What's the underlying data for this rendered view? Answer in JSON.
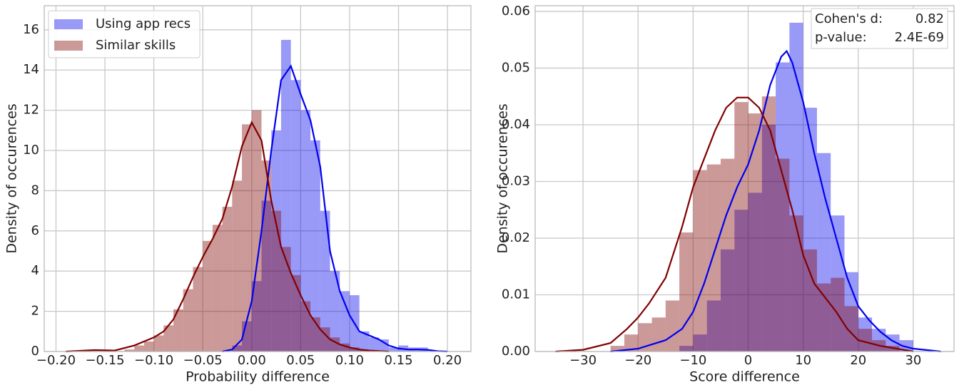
{
  "chart_data": [
    {
      "type": "histogram",
      "xlabel": "Probability difference",
      "ylabel": "Density of occurences",
      "xlim": [
        -0.212,
        0.224
      ],
      "ylim": [
        0,
        17.2
      ],
      "xticks": [
        {
          "value": -0.2,
          "label": "−0.20"
        },
        {
          "value": -0.15,
          "label": "−0.15"
        },
        {
          "value": -0.1,
          "label": "−0.10"
        },
        {
          "value": -0.05,
          "label": "−0.05"
        },
        {
          "value": 0,
          "label": "0.00"
        },
        {
          "value": 0.05,
          "label": "0.05"
        },
        {
          "value": 0.1,
          "label": "0.10"
        },
        {
          "value": 0.15,
          "label": "0.15"
        },
        {
          "value": 0.2,
          "label": "0.20"
        }
      ],
      "yticks": [
        0,
        2,
        4,
        6,
        8,
        10,
        12,
        14,
        16
      ],
      "grid": true,
      "legend": "upper left",
      "series": [
        {
          "name": "Using app recs",
          "color": "#0000ee",
          "bins": [
            -0.02,
            -0.01,
            0,
            0.01,
            0.02,
            0.03,
            0.04,
            0.05,
            0.06,
            0.07,
            0.08,
            0.09,
            0.1,
            0.11,
            0.12,
            0.13,
            0.14,
            0.15,
            0.16,
            0.17,
            0.18
          ],
          "values": [
            0.3,
            1.5,
            3.5,
            7.5,
            11,
            15.5,
            13.5,
            12,
            10.5,
            7,
            4,
            3,
            2.8,
            1,
            0.7,
            0.6,
            0.2,
            0.3,
            0.2,
            0.2
          ],
          "kde": {
            "x": [
              -0.03,
              -0.02,
              -0.01,
              0,
              0.01,
              0.02,
              0.03,
              0.04,
              0.05,
              0.06,
              0.07,
              0.08,
              0.09,
              0.1,
              0.11,
              0.12,
              0.13,
              0.14,
              0.15,
              0.16,
              0.17,
              0.18,
              0.19,
              0.2
            ],
            "values": [
              0,
              0.1,
              0.6,
              2.5,
              6,
              10,
              13.5,
              14.2,
              12.8,
              11.5,
              9.2,
              5,
              3,
              1.8,
              1,
              0.8,
              0.6,
              0.3,
              0.15,
              0.1,
              0.1,
              0.08,
              0.02,
              0
            ]
          }
        },
        {
          "name": "Similar skills",
          "color": "#800000",
          "bins": [
            -0.13,
            -0.12,
            -0.11,
            -0.1,
            -0.09,
            -0.08,
            -0.07,
            -0.06,
            -0.05,
            -0.04,
            -0.03,
            -0.02,
            -0.01,
            0,
            0.01,
            0.02,
            0.03,
            0.04,
            0.05,
            0.06,
            0.07,
            0.08,
            0.09,
            0.1,
            0.11,
            0.12
          ],
          "values": [
            0.1,
            0.3,
            0.5,
            0.8,
            1.3,
            2.1,
            3.1,
            4.2,
            5.5,
            6.3,
            7.2,
            8.5,
            11.3,
            12,
            9.5,
            7,
            5.2,
            3.8,
            2.5,
            1.7,
            1.2,
            0.7,
            0.4,
            0.2,
            0.1
          ],
          "kde": {
            "x": [
              -0.19,
              -0.17,
              -0.16,
              -0.14,
              -0.12,
              -0.1,
              -0.09,
              -0.08,
              -0.07,
              -0.06,
              -0.05,
              -0.04,
              -0.03,
              -0.02,
              -0.01,
              0,
              0.01,
              0.02,
              0.03,
              0.04,
              0.05,
              0.06,
              0.07,
              0.08,
              0.09,
              0.1,
              0.11,
              0.12,
              0.14
            ],
            "values": [
              0,
              0.05,
              0.07,
              0.05,
              0.3,
              0.7,
              1,
              1.6,
              2.6,
              3.7,
              4.7,
              5.6,
              6.6,
              8.2,
              10.2,
              11.4,
              10.5,
              7.5,
              5.2,
              3.9,
              2.8,
              1.8,
              1.1,
              0.6,
              0.35,
              0.2,
              0.1,
              0.05,
              0
            ]
          }
        }
      ]
    },
    {
      "type": "histogram",
      "xlabel": "Score difference",
      "ylabel": "Density of occurences",
      "xlim": [
        -38.7,
        37.4
      ],
      "ylim": [
        0,
        0.061
      ],
      "xticks": [
        {
          "value": -30,
          "label": "−30"
        },
        {
          "value": -20,
          "label": "−20"
        },
        {
          "value": -10,
          "label": "−10"
        },
        0,
        10,
        20,
        30
      ],
      "yticks": [
        {
          "value": 0,
          "label": "0.00"
        },
        0.01,
        0.02,
        0.03,
        0.04,
        0.05,
        0.06
      ],
      "grid": true,
      "annotation": [
        [
          "Cohen's d:",
          "0.82"
        ],
        [
          "p-value:",
          "2.4E-69"
        ]
      ],
      "series": [
        {
          "color": "#0000ee",
          "bins": [
            -12.5,
            -10,
            -7.5,
            -5,
            -2.5,
            0,
            2.5,
            5,
            7.5,
            10,
            12.5,
            15,
            17.5,
            20,
            22.5,
            25,
            27.5,
            30
          ],
          "values": [
            0.001,
            0.003,
            0.009,
            0.018,
            0.025,
            0.028,
            0.04,
            0.051,
            0.058,
            0.043,
            0.035,
            0.024,
            0.014,
            0.006,
            0.004,
            0.003,
            0.002
          ],
          "kde": {
            "x": [
              -25,
              -20,
              -15,
              -12,
              -10,
              -8,
              -6,
              -4,
              -2,
              0,
              2,
              4,
              6,
              7,
              8,
              10,
              12,
              14,
              16,
              18,
              20,
              22,
              24,
              26,
              28,
              30,
              35
            ],
            "values": [
              0,
              0.0005,
              0.002,
              0.004,
              0.007,
              0.012,
              0.018,
              0.024,
              0.029,
              0.033,
              0.039,
              0.047,
              0.052,
              0.053,
              0.051,
              0.044,
              0.035,
              0.027,
              0.02,
              0.013,
              0.008,
              0.0055,
              0.0035,
              0.002,
              0.001,
              0.0005,
              0
            ]
          }
        },
        {
          "color": "#800000",
          "bins": [
            -25,
            -22.5,
            -20,
            -17.5,
            -15,
            -12.5,
            -10,
            -7.5,
            -5,
            -2.5,
            0,
            2.5,
            5,
            7.5,
            10,
            12.5,
            15,
            17.5,
            20,
            22.5,
            25,
            27.5
          ],
          "values": [
            0.001,
            0.003,
            0.005,
            0.006,
            0.009,
            0.021,
            0.032,
            0.033,
            0.034,
            0.044,
            0.042,
            0.045,
            0.034,
            0.024,
            0.018,
            0.012,
            0.013,
            0.008,
            0.004,
            0.002,
            0.001
          ],
          "kde": {
            "x": [
              -35,
              -30,
              -25,
              -22,
              -20,
              -18,
              -15,
              -12,
              -10,
              -8,
              -6,
              -4,
              -2,
              0,
              2,
              4,
              6,
              8,
              10,
              12,
              14,
              16,
              18,
              20,
              24,
              30
            ],
            "values": [
              0,
              0.0003,
              0.0015,
              0.004,
              0.006,
              0.0085,
              0.013,
              0.022,
              0.029,
              0.034,
              0.039,
              0.043,
              0.0448,
              0.0448,
              0.043,
              0.039,
              0.032,
              0.025,
              0.017,
              0.012,
              0.0095,
              0.007,
              0.004,
              0.002,
              0.001,
              0
            ]
          }
        }
      ]
    }
  ]
}
